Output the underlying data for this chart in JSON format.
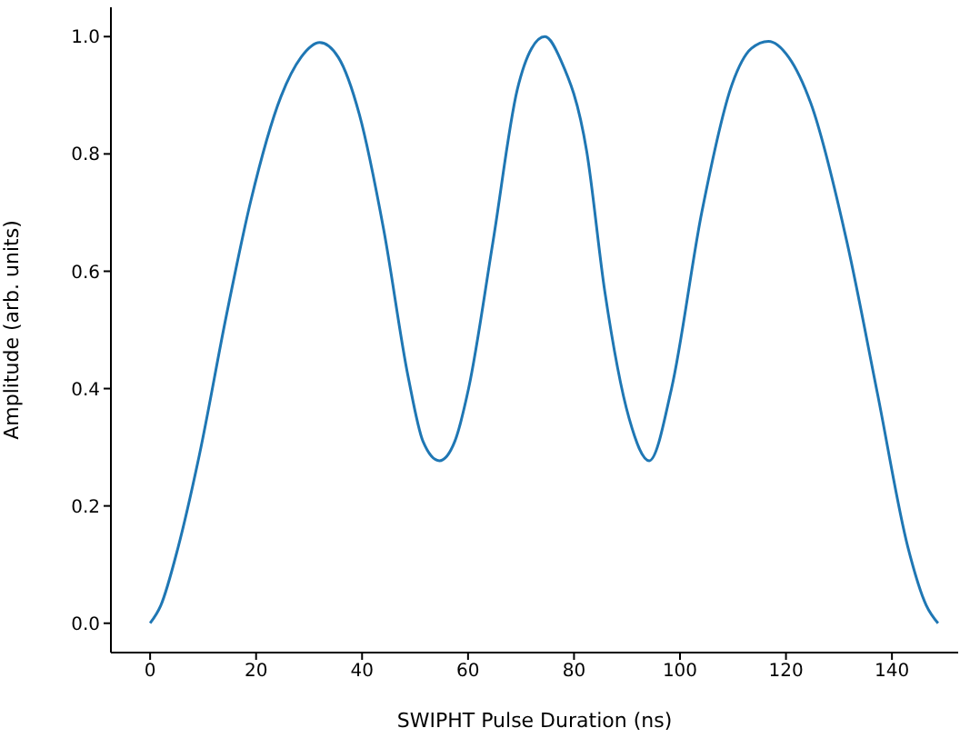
{
  "chart_data": {
    "type": "line",
    "xlabel": "SWIPHT Pulse Duration (ns)",
    "ylabel": "Amplitude (arb. units)",
    "x": [
      0,
      2,
      5.3,
      9.3,
      14.4,
      19,
      24.7,
      28.5,
      32,
      35.5,
      39.5,
      44.1,
      48.7,
      51.5,
      54.6,
      57.5,
      60.1,
      64.7,
      69.3,
      72,
      74.5,
      77.5,
      82.4,
      85.8,
      90.4,
      94.2,
      98.4,
      104.1,
      109.8,
      113.5,
      116.7,
      120.5,
      124.7,
      131.5,
      137.3,
      143,
      146.5,
      148.7
    ],
    "series": [
      {
        "color": "#1f77b4",
        "values": [
          0,
          0.03,
          0.13,
          0.287,
          0.525,
          0.72,
          0.898,
          0.965,
          0.99,
          0.965,
          0.867,
          0.67,
          0.42,
          0.31,
          0.277,
          0.31,
          0.4,
          0.65,
          0.91,
          0.98,
          1.0,
          0.96,
          0.804,
          0.566,
          0.349,
          0.277,
          0.4,
          0.7,
          0.918,
          0.98,
          0.992,
          0.965,
          0.886,
          0.65,
          0.39,
          0.13,
          0.03,
          0
        ]
      }
    ],
    "xlim": [
      -7.4,
      152.5
    ],
    "ylim": [
      -0.05,
      1.05
    ],
    "xticks": [
      0,
      20,
      40,
      60,
      80,
      100,
      120,
      140
    ],
    "yticks": [
      {
        "value": 0,
        "label": "0.0"
      },
      {
        "value": 0.2,
        "label": "0.2"
      },
      {
        "value": 0.4,
        "label": "0.4"
      },
      {
        "value": 0.6,
        "label": "0.6"
      },
      {
        "value": 0.8,
        "label": "0.8"
      },
      {
        "value": 1,
        "label": "1.0"
      }
    ],
    "grid": false,
    "legend": false,
    "marker": "none",
    "line_style": "solid"
  }
}
